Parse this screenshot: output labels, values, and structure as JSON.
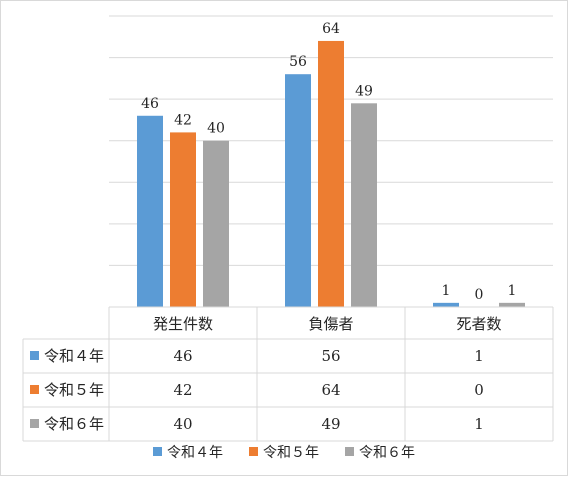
{
  "chart_data": {
    "type": "bar",
    "categories": [
      "発生件数",
      "負傷者",
      "死者数"
    ],
    "series": [
      {
        "name": "令和４年",
        "values": [
          46,
          56,
          1
        ],
        "color": "#5b9bd5"
      },
      {
        "name": "令和５年",
        "values": [
          42,
          64,
          0
        ],
        "color": "#ed7d31"
      },
      {
        "name": "令和６年",
        "values": [
          40,
          49,
          1
        ],
        "color": "#a5a5a5"
      }
    ],
    "ylim": [
      0,
      70
    ],
    "y_gridline_step": 10,
    "grid": true,
    "data_table": true,
    "legend": "bottom"
  }
}
